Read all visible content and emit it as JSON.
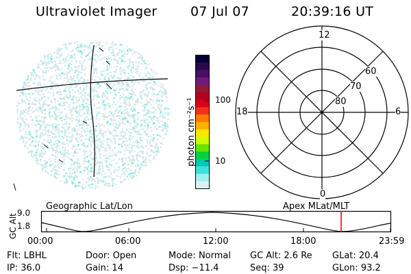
{
  "header": {
    "instrument": "Ultraviolet Imager",
    "date": "07 Jul 07",
    "time": "20:39:16 UT"
  },
  "colorbar": {
    "label": "photon cm⁻²s⁻¹",
    "ticks": [
      "100",
      "10"
    ],
    "colors": [
      "#000033",
      "#2b0a4a",
      "#4a0f66",
      "#6d1c7d",
      "#8f1c3a",
      "#b3001f",
      "#d9001a",
      "#f0321a",
      "#ff7a00",
      "#ffb000",
      "#ffe600",
      "#ccff00",
      "#66e600",
      "#00d23c",
      "#00c8b4",
      "#40e0e0",
      "#9ff0f0",
      "#e0f0f0"
    ]
  },
  "left_panel": {
    "caption": "Geographic Lat/Lon"
  },
  "right_panel": {
    "caption": "Apex MLat/MLT",
    "mlt_labels": [
      "12",
      "18",
      "6",
      "0"
    ],
    "lat_labels": [
      "60",
      "70",
      "80"
    ]
  },
  "altitude_strip": {
    "axis_label": "GC Alt",
    "y_ticks": [
      "9.0",
      "1.8"
    ],
    "x_ticks": [
      "00:00",
      "06:00",
      "12:00",
      "18:00",
      "23:59"
    ]
  },
  "status": {
    "flt_label": "Flt:",
    "flt_value": "LBHL",
    "door_label": "Door:",
    "door_value": "Open",
    "mode_label": "Mode:",
    "mode_value": "Normal",
    "gcalt_label": "GC Alt:",
    "gcalt_value": "2.6 Re",
    "glat_label": "GLat:",
    "glat_value": "20.4",
    "ip_label": "IP:",
    "ip_value": "36.0",
    "gain_label": "Gain:",
    "gain_value": "14",
    "dsp_label": "Dsp:",
    "dsp_value": "−11.4",
    "seq_label": "Seq:",
    "seq_value": "39",
    "glon_label": "GLon:",
    "glon_value": "93.2"
  },
  "theme": {
    "marker_color": "#cc0000",
    "noise_colors": [
      "#cfe6e6",
      "#a8ecec",
      "#6fe3e3",
      "#e2ecec"
    ]
  }
}
